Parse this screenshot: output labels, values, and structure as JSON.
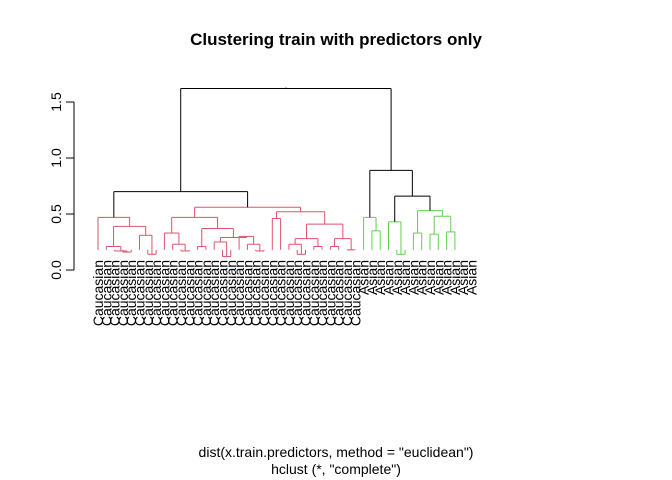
{
  "chart_data": {
    "type": "dendrogram",
    "title": "Clustering train with predictors only",
    "xlabel": "dist(x.train.predictors, method = \"euclidean\")",
    "sub": "hclust (*, \"complete\")",
    "ylabel": "",
    "ylim": [
      0,
      1.7
    ],
    "yticks": [
      0.0,
      0.5,
      1.0,
      1.5
    ],
    "ytick_labels": [
      "0.0",
      "0.5",
      "1.0",
      "1.5"
    ],
    "root_height": 1.62,
    "leaf_labels": [
      "Caucasian",
      "Caucasian",
      "Caucasian",
      "Caucasian",
      "Caucasian",
      "Caucasian",
      "Caucasian",
      "Caucasian",
      "Caucasian",
      "Caucasian",
      "Caucasian",
      "Caucasian",
      "Caucasian",
      "Caucasian",
      "Caucasian",
      "Caucasian",
      "Caucasian",
      "Caucasian",
      "Caucasian",
      "Caucasian",
      "Caucasian",
      "Caucasian",
      "Caucasian",
      "Caucasian",
      "Caucasian",
      "Caucasian",
      "Caucasian",
      "Caucasian",
      "Caucasian",
      "Caucasian",
      "Caucasian",
      "Caucasian",
      "Asian",
      "Asian",
      "Asian",
      "Asian",
      "Asian",
      "Asian",
      "Asian",
      "Asian",
      "Asian",
      "Asian",
      "Asian",
      "Asian",
      "Asian",
      "Asian"
    ],
    "groups": [
      {
        "label": "Caucasian",
        "color": "#DF536B",
        "leaves": 32
      },
      {
        "label": "Asian",
        "color": "#61D04F",
        "leaves": 14
      }
    ],
    "tree": {
      "h": 1.62,
      "c": [
        {
          "h": 0.7,
          "c": [
            {
              "h": 0.47,
              "c": [
                {
                  "leaf": 0
                },
                {
                  "h": 0.39,
                  "c": [
                    {
                      "h": 0.21,
                      "c": [
                        {
                          "leaf": 1
                        },
                        {
                          "h": 0.17,
                          "c": [
                            {
                              "leaf": 2
                            },
                            {
                              "h": 0.16,
                              "c": [
                                {
                                  "leaf": 3
                                },
                                {
                                  "leaf": 4
                                }
                              ]
                            }
                          ]
                        }
                      ]
                    },
                    {
                      "h": 0.31,
                      "c": [
                        {
                          "leaf": 5
                        },
                        {
                          "h": 0.14,
                          "c": [
                            {
                              "leaf": 6
                            },
                            {
                              "leaf": 7
                            }
                          ]
                        }
                      ]
                    }
                  ]
                }
              ]
            },
            {
              "h": 0.56,
              "c": [
                {
                  "h": 0.47,
                  "c": [
                    {
                      "h": 0.33,
                      "c": [
                        {
                          "leaf": 8
                        },
                        {
                          "h": 0.23,
                          "c": [
                            {
                              "leaf": 9
                            },
                            {
                              "h": 0.17,
                              "c": [
                                {
                                  "leaf": 10
                                },
                                {
                                  "leaf": 11
                                }
                              ]
                            }
                          ]
                        }
                      ]
                    },
                    {
                      "h": 0.37,
                      "c": [
                        {
                          "h": 0.21,
                          "c": [
                            {
                              "leaf": 12
                            },
                            {
                              "leaf": 13
                            }
                          ]
                        },
                        {
                          "h": 0.29,
                          "c": [
                            {
                              "h": 0.25,
                              "c": [
                                {
                                  "leaf": 14
                                },
                                {
                                  "h": 0.12,
                                  "c": [
                                    {
                                      "leaf": 15
                                    },
                                    {
                                      "leaf": 16
                                    }
                                  ]
                                }
                              ]
                            },
                            {
                              "h": 0.3,
                              "c": [
                                {
                                  "leaf": 17
                                },
                                {
                                  "h": 0.23,
                                  "c": [
                                    {
                                      "leaf": 18
                                    },
                                    {
                                      "h": 0.17,
                                      "c": [
                                        {
                                          "leaf": 19
                                        },
                                        {
                                          "leaf": 20
                                        }
                                      ]
                                    }
                                  ]
                                }
                              ]
                            }
                          ]
                        }
                      ]
                    }
                  ]
                },
                {
                  "h": 0.52,
                  "c": [
                    {
                      "h": 0.46,
                      "c": [
                        {
                          "leaf": 21
                        },
                        {
                          "leaf": 22
                        }
                      ]
                    },
                    {
                      "h": 0.41,
                      "c": [
                        {
                          "h": 0.28,
                          "c": [
                            {
                              "h": 0.23,
                              "c": [
                                {
                                  "leaf": 23
                                },
                                {
                                  "h": 0.14,
                                  "c": [
                                    {
                                      "leaf": 24
                                    },
                                    {
                                      "leaf": 25
                                    }
                                  ]
                                }
                              ]
                            },
                            {
                              "h": 0.21,
                              "c": [
                                {
                                  "leaf": 26
                                },
                                {
                                  "leaf": 27
                                }
                              ]
                            }
                          ]
                        },
                        {
                          "h": 0.28,
                          "c": [
                            {
                              "h": 0.21,
                              "c": [
                                {
                                  "leaf": 28
                                },
                                {
                                  "leaf": 29
                                }
                              ]
                            },
                            {
                              "h": 0.18,
                              "c": [
                                {
                                  "leaf": 30
                                },
                                {
                                  "leaf": 31
                                }
                              ]
                            }
                          ]
                        }
                      ]
                    }
                  ]
                }
              ]
            }
          ]
        },
        {
          "h": 0.89,
          "c": [
            {
              "h": 0.47,
              "c": [
                {
                  "leaf": 32
                },
                {
                  "h": 0.35,
                  "c": [
                    {
                      "leaf": 33
                    },
                    {
                      "leaf": 34
                    }
                  ]
                }
              ]
            },
            {
              "h": 0.66,
              "c": [
                {
                  "h": 0.43,
                  "c": [
                    {
                      "leaf": 35
                    },
                    {
                      "h": 0.14,
                      "c": [
                        {
                          "leaf": 36
                        },
                        {
                          "leaf": 37
                        }
                      ]
                    }
                  ]
                },
                {
                  "h": 0.53,
                  "c": [
                    {
                      "h": 0.33,
                      "c": [
                        {
                          "leaf": 38
                        },
                        {
                          "leaf": 39
                        }
                      ]
                    },
                    {
                      "h": 0.48,
                      "c": [
                        {
                          "h": 0.32,
                          "c": [
                            {
                              "leaf": 40
                            },
                            {
                              "leaf": 41
                            }
                          ]
                        },
                        {
                          "h": 0.34,
                          "c": [
                            {
                              "leaf": 42
                            },
                            {
                              "leaf": 43
                            }
                          ]
                        }
                      ]
                    }
                  ]
                }
              ]
            }
          ]
        }
      ]
    }
  }
}
